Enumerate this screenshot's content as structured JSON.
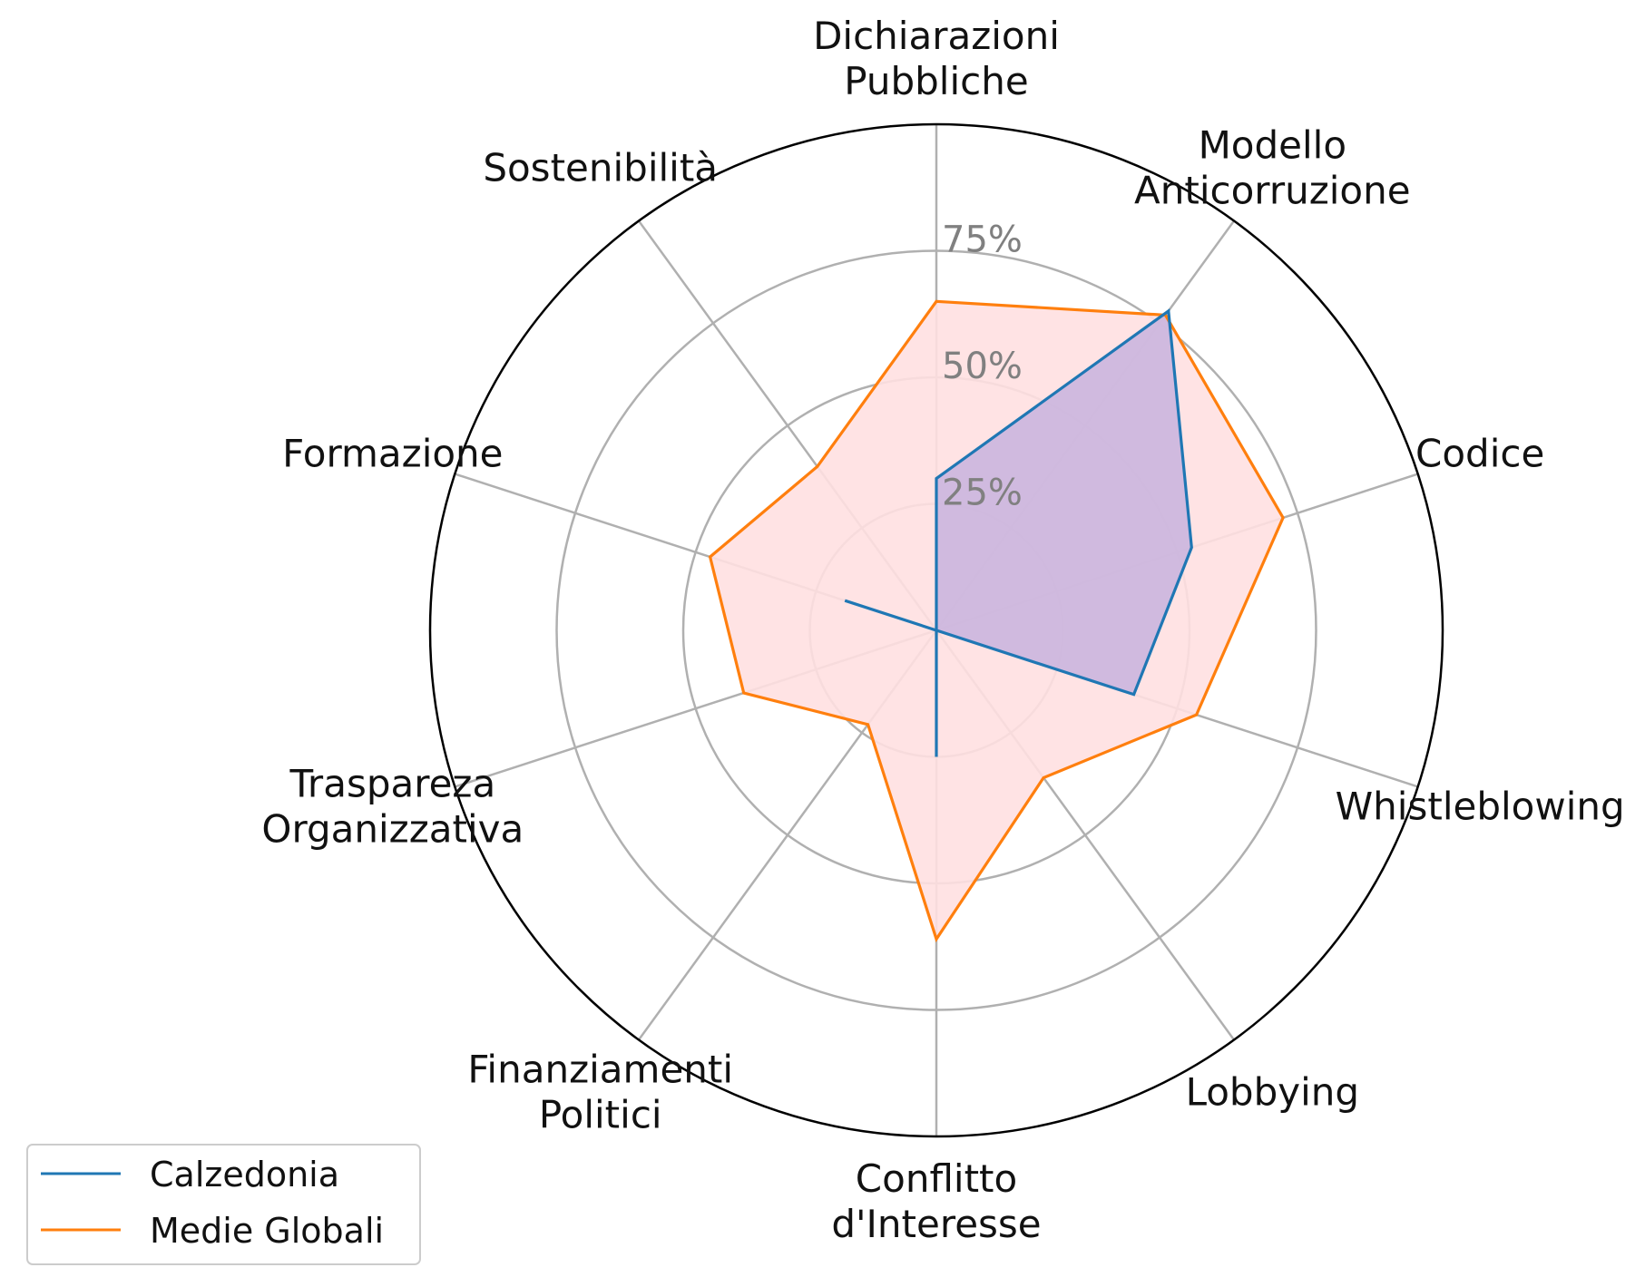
{
  "chart_data": {
    "type": "radar",
    "axes": [
      "Dichiarazioni\nPubbliche",
      "Modello\nAnticorruzione",
      "Codice",
      "Whistleblowing",
      "Lobbying",
      "Conflitto\nd'Interesse",
      "Finanziamenti\nPolitici",
      "Traspareza\nOrganizzativa",
      "Formazione",
      "Sostenibilità"
    ],
    "rlim": [
      0,
      100
    ],
    "rticks": [
      25,
      50,
      75
    ],
    "rtick_labels": [
      "25%",
      "50%",
      "75%"
    ],
    "grid": true,
    "series": [
      {
        "name": "Calzedonia",
        "color": "#1f77b4",
        "fill": "#c8b3de",
        "values": [
          30,
          78,
          53,
          41,
          0,
          25,
          0,
          0,
          19,
          0
        ]
      },
      {
        "name": "Medie Globali",
        "color": "#ff7f0e",
        "fill": "#ffe0e1",
        "values": [
          65,
          77,
          72,
          54,
          36,
          61,
          23,
          40,
          47,
          40
        ]
      }
    ],
    "legend_position": "lower-left"
  }
}
